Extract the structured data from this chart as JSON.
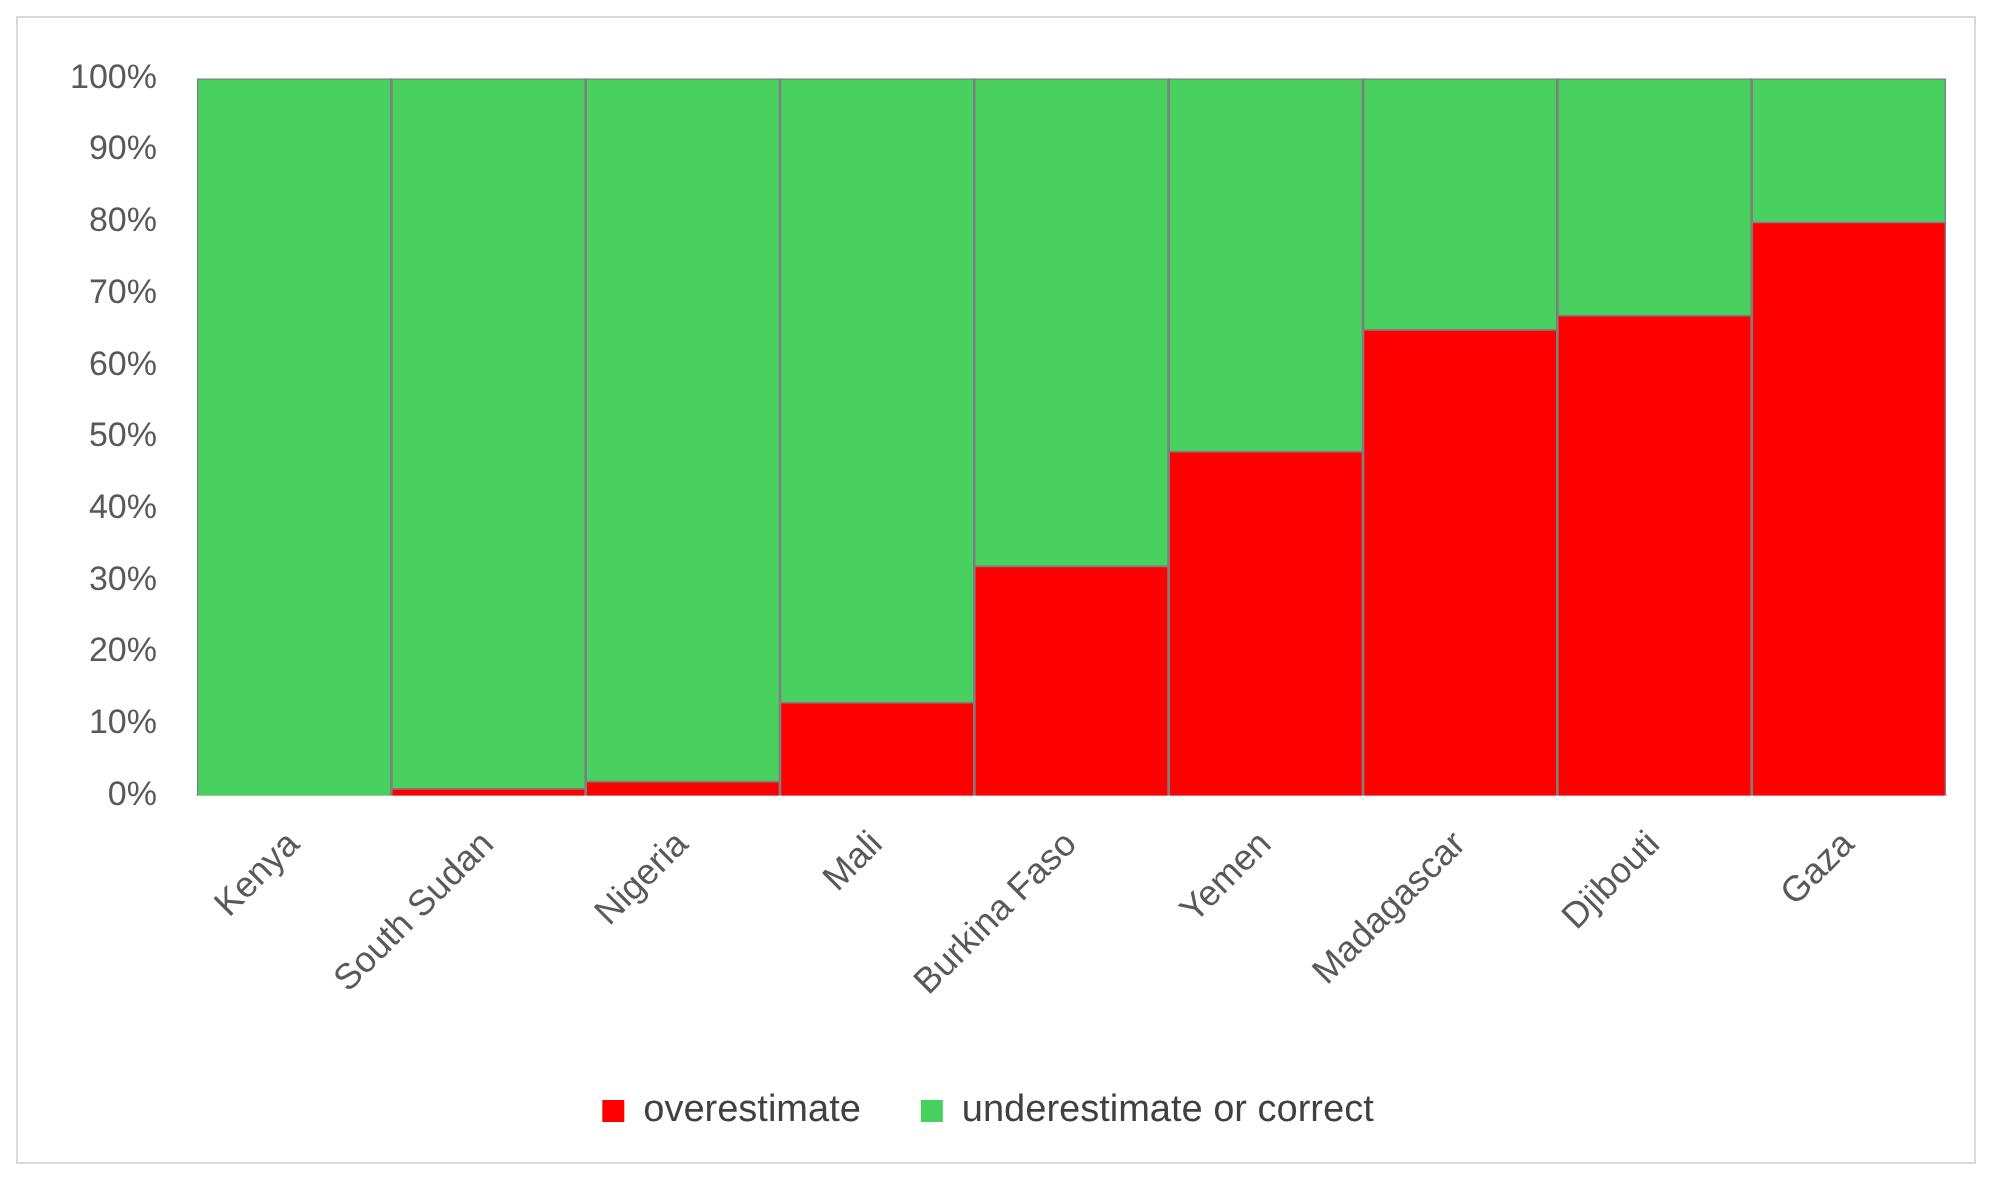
{
  "chart_data": {
    "type": "bar",
    "stacked": true,
    "categories": [
      "Kenya",
      "South Sudan",
      "Nigeria",
      "Mali",
      "Burkina Faso",
      "Yemen",
      "Madagascar",
      "Djibouti",
      "Gaza"
    ],
    "series": [
      {
        "name": "overestimate",
        "color": "#ff0000",
        "values": [
          0,
          1,
          2,
          13,
          32,
          48,
          65,
          67,
          80
        ]
      },
      {
        "name": "underestimate or correct",
        "color": "#48d15e",
        "values": [
          100,
          99,
          98,
          87,
          68,
          52,
          35,
          33,
          20
        ]
      }
    ],
    "ylim": [
      0,
      100
    ],
    "yticks": [
      {
        "value": 0,
        "label": "0%"
      },
      {
        "value": 10,
        "label": "10%"
      },
      {
        "value": 20,
        "label": "20%"
      },
      {
        "value": 30,
        "label": "30%"
      },
      {
        "value": 40,
        "label": "40%"
      },
      {
        "value": 50,
        "label": "50%"
      },
      {
        "value": 60,
        "label": "60%"
      },
      {
        "value": 70,
        "label": "70%"
      },
      {
        "value": 80,
        "label": "80%"
      },
      {
        "value": 90,
        "label": "90%"
      },
      {
        "value": 100,
        "label": "100%"
      }
    ],
    "legend": "bottom"
  }
}
